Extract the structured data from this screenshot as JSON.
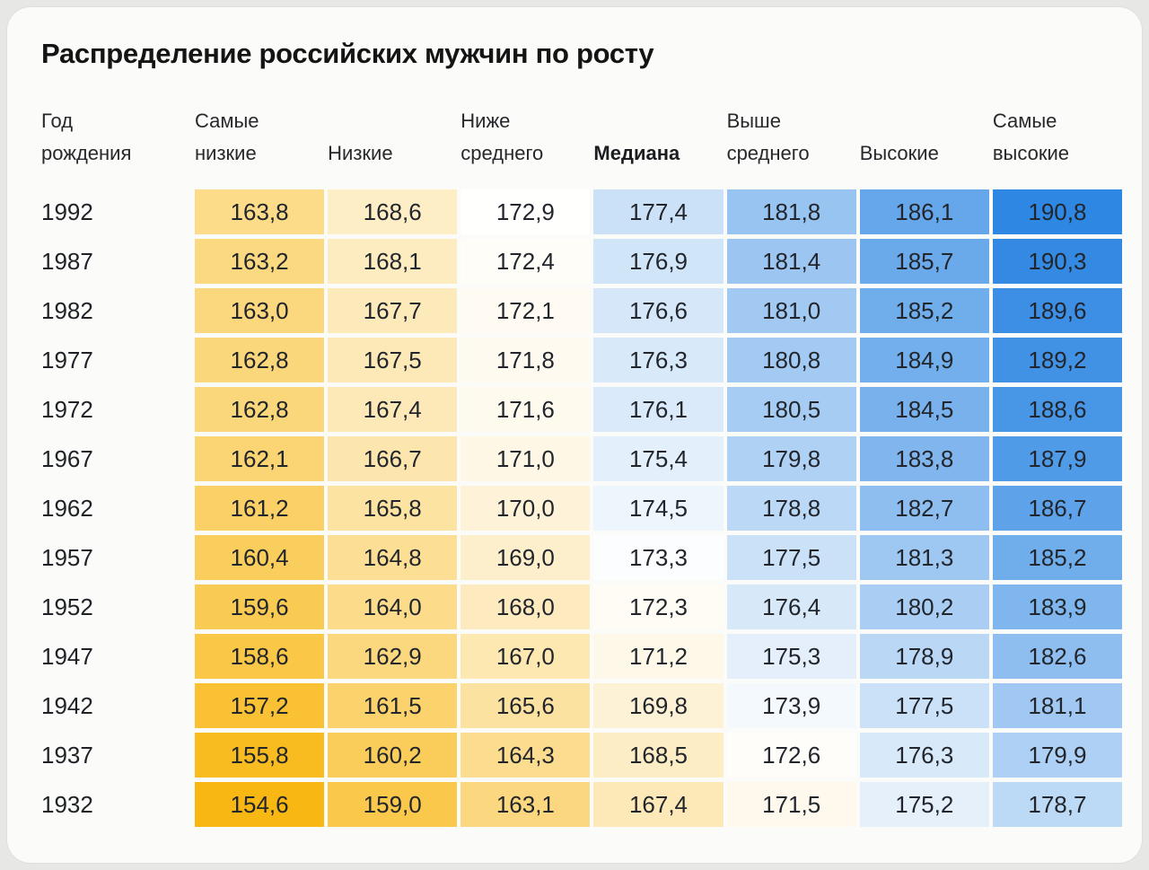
{
  "title": "Распределение российских мужчин по росту",
  "colors": {
    "page_background": "#E7E7E6",
    "card_background": "#FBFBF9",
    "title_text": "#141414",
    "header_text": "#26282B",
    "cell_text": "#22262C"
  },
  "chart_data": {
    "type": "heatmap",
    "title": "Распределение российских мужчин по росту",
    "columns": [
      "Год\nрождения",
      "Самые\nнизкие",
      "Низкие",
      "Ниже\nсреднего",
      "Медиана",
      "Выше\nсреднего",
      "Высокие",
      "Самые\nвысокие"
    ],
    "median_column_index": 4,
    "value_decimal_separator": ",",
    "rows": [
      {
        "year": "1992",
        "values": [
          163.8,
          168.6,
          172.9,
          177.4,
          181.8,
          186.1,
          190.8
        ]
      },
      {
        "year": "1987",
        "values": [
          163.2,
          168.1,
          172.4,
          176.9,
          181.4,
          185.7,
          190.3
        ]
      },
      {
        "year": "1982",
        "values": [
          163.0,
          167.7,
          172.1,
          176.6,
          181.0,
          185.2,
          189.6
        ]
      },
      {
        "year": "1977",
        "values": [
          162.8,
          167.5,
          171.8,
          176.3,
          180.8,
          184.9,
          189.2
        ]
      },
      {
        "year": "1972",
        "values": [
          162.8,
          167.4,
          171.6,
          176.1,
          180.5,
          184.5,
          188.6
        ]
      },
      {
        "year": "1967",
        "values": [
          162.1,
          166.7,
          171.0,
          175.4,
          179.8,
          183.8,
          187.9
        ]
      },
      {
        "year": "1962",
        "values": [
          161.2,
          165.8,
          170.0,
          174.5,
          178.8,
          182.7,
          186.7
        ]
      },
      {
        "year": "1957",
        "values": [
          160.4,
          164.8,
          169.0,
          173.3,
          177.5,
          181.3,
          185.2
        ]
      },
      {
        "year": "1952",
        "values": [
          159.6,
          164.0,
          168.0,
          172.3,
          176.4,
          180.2,
          183.9
        ]
      },
      {
        "year": "1947",
        "values": [
          158.6,
          162.9,
          167.0,
          171.2,
          175.3,
          178.9,
          182.6
        ]
      },
      {
        "year": "1942",
        "values": [
          157.2,
          161.5,
          165.6,
          169.8,
          173.9,
          177.5,
          181.1
        ]
      },
      {
        "year": "1937",
        "values": [
          155.8,
          160.2,
          164.3,
          168.5,
          172.6,
          176.3,
          179.9
        ]
      },
      {
        "year": "1932",
        "values": [
          154.6,
          159.0,
          163.1,
          167.4,
          171.5,
          175.2,
          178.7
        ]
      }
    ],
    "color_scale": {
      "low_color": "#F8B712",
      "mid_color": "#FFFFFF",
      "high_color": "#2E87E2",
      "min_value": 154.6,
      "mid_value": 173.0,
      "max_value": 190.8
    },
    "layout": {
      "grid": false,
      "legend": false
    }
  }
}
